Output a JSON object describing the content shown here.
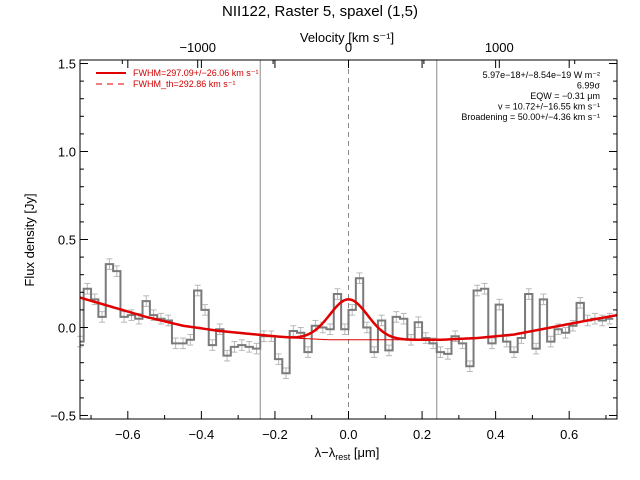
{
  "chart_data": {
    "type": "line",
    "title": "NII122, Raster 5, spaxel (1,5)",
    "xlabel": "λ−λrest [μm]",
    "xlabel_main": "λ−λ",
    "xlabel_sub": "rest",
    "xlabel_unit": " [μm]",
    "ylabel": "Flux density [Jy]",
    "top_axis_label": "Velocity [km s⁻¹]",
    "xlim": [
      -0.73,
      0.73
    ],
    "ylim": [
      -0.52,
      1.52
    ],
    "x_ticks": [
      -0.6,
      -0.4,
      -0.2,
      0.0,
      0.2,
      0.4,
      0.6
    ],
    "x_tick_labels": [
      "−0.6",
      "−0.4",
      "−0.2",
      "0.0",
      "0.2",
      "0.4",
      "0.6"
    ],
    "y_ticks": [
      -0.5,
      0.0,
      0.5,
      1.0,
      1.5
    ],
    "y_tick_labels": [
      "−0.5",
      "0.0",
      "0.5",
      "1.0",
      "1.5"
    ],
    "top_ticks": [
      -1000,
      0,
      1000
    ],
    "top_tick_labels": [
      "−1000",
      "0",
      "1000"
    ],
    "top_axis_scale_um_per_1000kms": 0.41,
    "vertical_lines_x": [
      -0.24,
      0.0,
      0.24
    ],
    "center_line_x": 0.0,
    "legend": {
      "placement": "top-left",
      "entries": [
        {
          "label": "FWHM=297.09+/−26.06 km s⁻¹",
          "style": "solid"
        },
        {
          "label": "FWHM_th=292.86 km s⁻¹",
          "style": "dashed"
        }
      ]
    },
    "annotations": [
      "5.97e−18+/−8.54e−19 W m⁻²",
      "6.99σ",
      "EQW = −0.31 μm",
      "v = 10.72+/−16.55 km s⁻¹",
      "Broadening = 50.00+/−4.36 km s⁻¹"
    ],
    "series": [
      {
        "type": "step",
        "x": [
          -0.73,
          -0.71,
          -0.69,
          -0.67,
          -0.65,
          -0.63,
          -0.61,
          -0.59,
          -0.57,
          -0.55,
          -0.53,
          -0.51,
          -0.49,
          -0.47,
          -0.45,
          -0.43,
          -0.41,
          -0.39,
          -0.37,
          -0.35,
          -0.33,
          -0.31,
          -0.29,
          -0.27,
          -0.25,
          -0.23,
          -0.21,
          -0.19,
          -0.17,
          -0.15,
          -0.13,
          -0.11,
          -0.09,
          -0.07,
          -0.05,
          -0.03,
          -0.01,
          0.01,
          0.03,
          0.05,
          0.07,
          0.09,
          0.11,
          0.13,
          0.15,
          0.17,
          0.19,
          0.21,
          0.23,
          0.25,
          0.27,
          0.29,
          0.31,
          0.33,
          0.35,
          0.37,
          0.39,
          0.41,
          0.43,
          0.45,
          0.47,
          0.49,
          0.51,
          0.53,
          0.55,
          0.57,
          0.59,
          0.61,
          0.63,
          0.65,
          0.67,
          0.69,
          0.71
        ],
        "y": [
          -0.08,
          0.22,
          0.16,
          0.06,
          0.36,
          0.32,
          0.06,
          0.07,
          0.05,
          0.15,
          0.07,
          0.05,
          0.04,
          -0.09,
          -0.09,
          -0.07,
          0.21,
          0.1,
          -0.1,
          -0.01,
          -0.16,
          -0.11,
          -0.1,
          -0.11,
          -0.12,
          -0.05,
          -0.05,
          -0.18,
          -0.26,
          -0.02,
          -0.03,
          -0.14,
          0.01,
          0.0,
          -0.01,
          0.19,
          -0.01,
          0.1,
          0.28,
          0.0,
          -0.14,
          0.04,
          -0.13,
          0.06,
          0.05,
          -0.07,
          0.03,
          -0.06,
          -0.09,
          -0.14,
          -0.15,
          -0.05,
          -0.09,
          -0.22,
          0.21,
          0.22,
          -0.09,
          0.13,
          -0.08,
          -0.14,
          -0.06,
          0.19,
          -0.12,
          0.16,
          -0.08,
          -0.01,
          -0.03,
          0.01,
          0.14,
          0.04,
          0.05,
          0.04,
          0.05
        ],
        "yerr": 0.03
      },
      {
        "type": "fit",
        "name": "FWHM=297.09+/−26.06 km s⁻¹",
        "continuum_x": [
          -0.73,
          -0.55,
          -0.45,
          -0.35,
          -0.25,
          -0.15,
          -0.05,
          0.05,
          0.15,
          0.25,
          0.35,
          0.45,
          0.55,
          0.65,
          0.73
        ],
        "continuum_y": [
          0.17,
          0.06,
          0.01,
          -0.02,
          -0.04,
          -0.06,
          -0.07,
          -0.07,
          -0.07,
          -0.07,
          -0.06,
          -0.04,
          0.0,
          0.04,
          0.07
        ],
        "peak_amplitude": 0.23,
        "peak_center": 0.0,
        "peak_sigma": 0.052
      }
    ],
    "colors": {
      "data": "#7a7a7a",
      "error_bars": "#b8b8b8",
      "fit": "#e00000",
      "vlines": "#8a8a8a",
      "annotations": "#000000",
      "legend_text": "#d00000"
    }
  }
}
